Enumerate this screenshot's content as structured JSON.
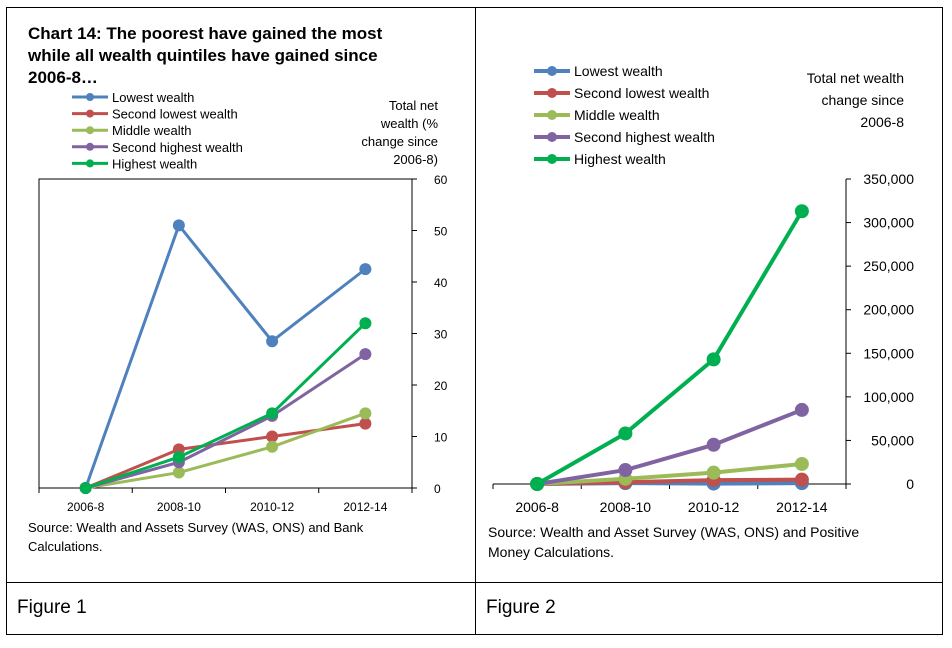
{
  "figures": [
    {
      "caption": "Figure 1",
      "source": [
        "Source: Wealth and Assets Survey (WAS, ONS) and Bank",
        "Calculations."
      ],
      "axis_note": [
        "Total net",
        "wealth (%",
        "change since",
        "2006-8)"
      ],
      "chart_data": {
        "type": "line",
        "title": [
          "Chart 14: The poorest have gained the most",
          "while all wealth quintiles have gained since",
          "2006-8…"
        ],
        "categories": [
          "2006-8",
          "2008-10",
          "2010-12",
          "2012-14"
        ],
        "ylabel": "Total net wealth (% change since 2006-8)",
        "ylim": [
          0,
          60
        ],
        "yticks": [
          0,
          10,
          20,
          30,
          40,
          50,
          60
        ],
        "ytick_labels": [
          "0",
          "10",
          "20",
          "30",
          "40",
          "50",
          "60"
        ],
        "y_axis_side": "right",
        "legend_position": "top-left",
        "series": [
          {
            "name": "Lowest wealth",
            "color": "#4f81bd",
            "values": [
              0,
              51,
              28.5,
              42.5
            ]
          },
          {
            "name": "Second lowest wealth",
            "color": "#c0504d",
            "values": [
              0,
              7.5,
              10,
              12.5
            ]
          },
          {
            "name": "Middle wealth",
            "color": "#9bbb59",
            "values": [
              0,
              3,
              8,
              14.5
            ]
          },
          {
            "name": "Second highest wealth",
            "color": "#8064a2",
            "values": [
              0,
              5,
              14,
              26
            ]
          },
          {
            "name": "Highest wealth",
            "color": "#00b050",
            "values": [
              0,
              6,
              14.5,
              32
            ]
          }
        ]
      }
    },
    {
      "caption": "Figure 2",
      "source": [
        "Source: Wealth and Asset Survey (WAS, ONS) and Positive",
        "Money Calculations."
      ],
      "axis_note": [
        "Total net wealth",
        "change since",
        "2006-8"
      ],
      "chart_data": {
        "type": "line",
        "title": "",
        "categories": [
          "2006-8",
          "2008-10",
          "2010-12",
          "2012-14"
        ],
        "ylabel": "Total net wealth change since 2006-8",
        "ylim": [
          0,
          350000
        ],
        "yticks": [
          0,
          50000,
          100000,
          150000,
          200000,
          250000,
          300000,
          350000
        ],
        "ytick_labels": [
          "0",
          "50,000",
          "100,000",
          "150,000",
          "200,000",
          "250,000",
          "300,000",
          "350,000"
        ],
        "y_axis_side": "right",
        "legend_position": "top-left",
        "series": [
          {
            "name": "Lowest wealth",
            "color": "#4f81bd",
            "values": [
              0,
              1000,
              500,
              1000
            ]
          },
          {
            "name": "Second lowest wealth",
            "color": "#c0504d",
            "values": [
              0,
              2000,
              4500,
              5000
            ]
          },
          {
            "name": "Middle wealth",
            "color": "#9bbb59",
            "values": [
              0,
              6000,
              13000,
              23000
            ]
          },
          {
            "name": "Second highest wealth",
            "color": "#8064a2",
            "values": [
              0,
              16000,
              45000,
              85000
            ]
          },
          {
            "name": "Highest wealth",
            "color": "#00b050",
            "values": [
              0,
              58000,
              143000,
              313000
            ]
          }
        ]
      }
    }
  ]
}
